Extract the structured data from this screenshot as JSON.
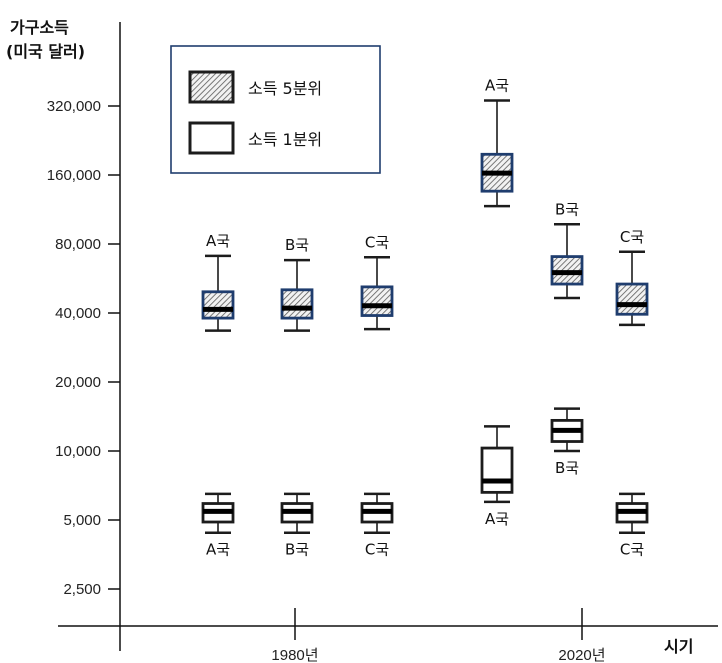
{
  "chart_data": {
    "type": "box",
    "y_axis": {
      "title_line1": "가구소득",
      "title_line2": "(미국 달러)",
      "scale": "log2",
      "ticks": [
        2500,
        5000,
        10000,
        20000,
        40000,
        80000,
        160000,
        320000
      ],
      "tick_labels": [
        "2,500",
        "5,000",
        "10,000",
        "20,000",
        "40,000",
        "80,000",
        "160,000",
        "320,000"
      ]
    },
    "x_axis": {
      "title": "시기",
      "categories": [
        "1980년",
        "2020년"
      ]
    },
    "legend": {
      "position": "top-left",
      "items": [
        {
          "label": "소득 5분위",
          "style": "hatched"
        },
        {
          "label": "소득 1분위",
          "style": "white"
        }
      ]
    },
    "series": [
      {
        "name": "소득 5분위",
        "boxes": [
          {
            "period": "1980년",
            "country": "A국",
            "min": 33500,
            "q1": 38000,
            "median": 41500,
            "q3": 49500,
            "max": 71000
          },
          {
            "period": "1980년",
            "country": "B국",
            "min": 33500,
            "q1": 38000,
            "median": 42000,
            "q3": 50500,
            "max": 68000
          },
          {
            "period": "1980년",
            "country": "C국",
            "min": 34000,
            "q1": 39000,
            "median": 43000,
            "q3": 52000,
            "max": 70000
          },
          {
            "period": "2020년",
            "country": "A국",
            "min": 117000,
            "q1": 136000,
            "median": 163000,
            "q3": 197000,
            "max": 338000
          },
          {
            "period": "2020년",
            "country": "B국",
            "min": 46500,
            "q1": 53500,
            "median": 60000,
            "q3": 70500,
            "max": 97500
          },
          {
            "period": "2020년",
            "country": "C국",
            "min": 35500,
            "q1": 39500,
            "median": 43500,
            "q3": 53500,
            "max": 74000
          }
        ]
      },
      {
        "name": "소득 1분위",
        "boxes": [
          {
            "period": "1980년",
            "country": "A국",
            "min": 4400,
            "q1": 4900,
            "median": 5450,
            "q3": 5900,
            "max": 6500
          },
          {
            "period": "1980년",
            "country": "B국",
            "min": 4400,
            "q1": 4900,
            "median": 5450,
            "q3": 5900,
            "max": 6500
          },
          {
            "period": "1980년",
            "country": "C국",
            "min": 4400,
            "q1": 4900,
            "median": 5450,
            "q3": 5900,
            "max": 6500
          },
          {
            "period": "2020년",
            "country": "A국",
            "min": 6000,
            "q1": 6600,
            "median": 7400,
            "q3": 10300,
            "max": 12800
          },
          {
            "period": "2020년",
            "country": "B국",
            "min": 10000,
            "q1": 11000,
            "median": 12300,
            "q3": 13600,
            "max": 15300
          },
          {
            "period": "2020년",
            "country": "C국",
            "min": 4400,
            "q1": 4900,
            "median": 5450,
            "q3": 5900,
            "max": 6500
          }
        ]
      }
    ]
  }
}
